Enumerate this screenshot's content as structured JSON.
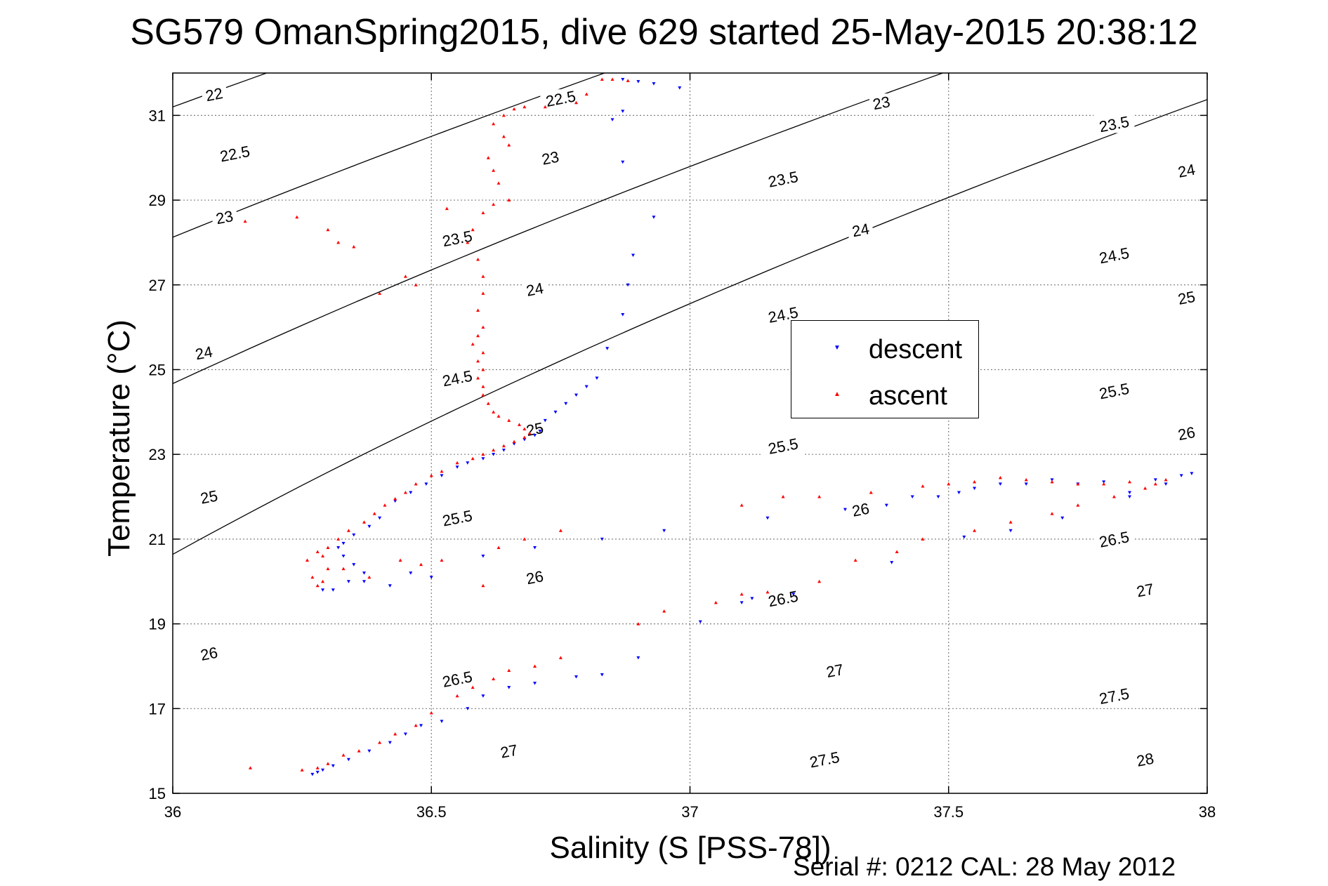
{
  "figure": {
    "title": "SG579 OmanSpring2015, dive 629 started 25-May-2015 20:38:12",
    "serial_text": "Serial #: 0212  CAL: 28 May 2012"
  },
  "chart_data": {
    "type": "scatter",
    "xlabel": "Salinity (S [PSS-78])",
    "ylabel": "Temperature (°C)",
    "xlim": [
      36,
      38
    ],
    "ylim": [
      15,
      32
    ],
    "xticks": [
      36,
      36.5,
      37,
      37.5,
      38
    ],
    "xtick_labels": [
      "36",
      "36.5",
      "37",
      "37.5",
      "38"
    ],
    "yticks": [
      15,
      17,
      19,
      21,
      23,
      25,
      27,
      29,
      31
    ],
    "ytick_labels": [
      "15",
      "17",
      "19",
      "21",
      "23",
      "25",
      "27",
      "29",
      "31"
    ],
    "grid": true,
    "legend_position": "right-center",
    "colors": {
      "descent": "#0000ff",
      "ascent": "#ff0000",
      "contour": "#000000",
      "grid": "#808080"
    },
    "density_contours": {
      "levels": [
        22,
        22.5,
        23,
        23.5,
        24,
        24.5,
        25,
        25.5,
        26,
        26.5,
        27,
        27.5,
        28
      ],
      "labels": [
        {
          "level": 22,
          "text": "22",
          "s": 36.08,
          "t": 31.5
        },
        {
          "level": 22.5,
          "text": "22.5",
          "s": 36.12,
          "t": 30.1
        },
        {
          "level": 23,
          "text": "23",
          "s": 36.1,
          "t": 28.6
        },
        {
          "level": 24,
          "text": "24",
          "s": 36.06,
          "t": 25.4
        },
        {
          "level": 25,
          "text": "25",
          "s": 36.07,
          "t": 22.0
        },
        {
          "level": 26,
          "text": "26",
          "s": 36.07,
          "t": 18.3
        },
        {
          "level": 23.5,
          "text": "23.5",
          "s": 36.55,
          "t": 28.1
        },
        {
          "level": 24.5,
          "text": "24.5",
          "s": 36.55,
          "t": 24.8
        },
        {
          "level": 25.5,
          "text": "25.5",
          "s": 36.55,
          "t": 21.5
        },
        {
          "level": 26.5,
          "text": "26.5",
          "s": 36.55,
          "t": 17.7
        },
        {
          "level": 27,
          "text": "27",
          "s": 36.65,
          "t": 16.0
        },
        {
          "level": 22.5,
          "text": "22.5",
          "s": 36.75,
          "t": 31.4
        },
        {
          "level": 23,
          "text": "23",
          "s": 36.73,
          "t": 30.0
        },
        {
          "level": 24,
          "text": "24",
          "s": 36.7,
          "t": 26.9
        },
        {
          "level": 25,
          "text": "25",
          "s": 36.7,
          "t": 23.6
        },
        {
          "level": 26,
          "text": "26",
          "s": 36.7,
          "t": 20.1
        },
        {
          "level": 23.5,
          "text": "23.5",
          "s": 37.18,
          "t": 29.5
        },
        {
          "level": 24.5,
          "text": "24.5",
          "s": 37.18,
          "t": 26.3
        },
        {
          "level": 25.5,
          "text": "25.5",
          "s": 37.18,
          "t": 23.2
        },
        {
          "level": 26.5,
          "text": "26.5",
          "s": 37.18,
          "t": 19.6
        },
        {
          "level": 27.5,
          "text": "27.5",
          "s": 37.26,
          "t": 15.8
        },
        {
          "level": 23,
          "text": "23",
          "s": 37.37,
          "t": 31.3
        },
        {
          "level": 24,
          "text": "24",
          "s": 37.33,
          "t": 28.3
        },
        {
          "level": 26,
          "text": "26",
          "s": 37.33,
          "t": 21.7
        },
        {
          "level": 27,
          "text": "27",
          "s": 37.28,
          "t": 17.9
        },
        {
          "level": 23.5,
          "text": "23.5",
          "s": 37.82,
          "t": 30.8
        },
        {
          "level": 24.5,
          "text": "24.5",
          "s": 37.82,
          "t": 27.7
        },
        {
          "level": 25.5,
          "text": "25.5",
          "s": 37.82,
          "t": 24.5
        },
        {
          "level": 26.5,
          "text": "26.5",
          "s": 37.82,
          "t": 21.0
        },
        {
          "level": 27.5,
          "text": "27.5",
          "s": 37.82,
          "t": 17.3
        },
        {
          "level": 24,
          "text": "24",
          "s": 37.96,
          "t": 29.7
        },
        {
          "level": 25,
          "text": "25",
          "s": 37.96,
          "t": 26.7
        },
        {
          "level": 26,
          "text": "26",
          "s": 37.96,
          "t": 23.5
        },
        {
          "level": 27,
          "text": "27",
          "s": 37.88,
          "t": 19.8
        },
        {
          "level": 28,
          "text": "28",
          "s": 37.88,
          "t": 15.8
        }
      ]
    },
    "series": [
      {
        "name": "descent",
        "marker": "triangle-down",
        "points": [
          [
            36.87,
            31.85
          ],
          [
            36.9,
            31.8
          ],
          [
            36.93,
            31.75
          ],
          [
            36.98,
            31.65
          ],
          [
            36.87,
            31.1
          ],
          [
            36.85,
            30.9
          ],
          [
            36.87,
            29.9
          ],
          [
            36.93,
            28.6
          ],
          [
            36.89,
            27.7
          ],
          [
            36.88,
            27.0
          ],
          [
            36.87,
            26.3
          ],
          [
            36.84,
            25.5
          ],
          [
            36.82,
            24.8
          ],
          [
            36.8,
            24.6
          ],
          [
            36.78,
            24.4
          ],
          [
            36.76,
            24.2
          ],
          [
            36.74,
            24.0
          ],
          [
            36.72,
            23.8
          ],
          [
            36.71,
            23.55
          ],
          [
            36.7,
            23.45
          ],
          [
            36.68,
            23.35
          ],
          [
            36.66,
            23.25
          ],
          [
            36.64,
            23.1
          ],
          [
            36.62,
            23.0
          ],
          [
            36.6,
            22.9
          ],
          [
            36.57,
            22.8
          ],
          [
            36.55,
            22.7
          ],
          [
            36.52,
            22.5
          ],
          [
            36.49,
            22.3
          ],
          [
            36.46,
            22.1
          ],
          [
            36.43,
            21.9
          ],
          [
            36.4,
            21.5
          ],
          [
            36.38,
            21.3
          ],
          [
            36.35,
            21.1
          ],
          [
            36.33,
            20.9
          ],
          [
            36.32,
            20.8
          ],
          [
            36.33,
            20.6
          ],
          [
            36.35,
            20.4
          ],
          [
            36.37,
            20.2
          ],
          [
            36.34,
            20.0
          ],
          [
            36.31,
            19.8
          ],
          [
            36.29,
            19.8
          ],
          [
            36.37,
            20.0
          ],
          [
            36.42,
            19.9
          ],
          [
            36.46,
            20.2
          ],
          [
            36.5,
            20.1
          ],
          [
            36.6,
            20.6
          ],
          [
            36.7,
            20.8
          ],
          [
            36.83,
            21.0
          ],
          [
            36.95,
            21.2
          ],
          [
            37.02,
            19.05
          ],
          [
            37.1,
            19.5
          ],
          [
            37.12,
            19.6
          ],
          [
            37.2,
            19.7
          ],
          [
            36.9,
            18.2
          ],
          [
            36.83,
            17.8
          ],
          [
            36.78,
            17.75
          ],
          [
            36.7,
            17.6
          ],
          [
            36.65,
            17.5
          ],
          [
            36.6,
            17.3
          ],
          [
            36.57,
            17.0
          ],
          [
            36.52,
            16.7
          ],
          [
            36.48,
            16.6
          ],
          [
            36.45,
            16.4
          ],
          [
            36.42,
            16.2
          ],
          [
            36.38,
            16.0
          ],
          [
            36.34,
            15.8
          ],
          [
            36.31,
            15.65
          ],
          [
            36.29,
            15.55
          ],
          [
            36.28,
            15.5
          ],
          [
            36.27,
            15.45
          ],
          [
            37.15,
            21.5
          ],
          [
            37.3,
            21.7
          ],
          [
            37.38,
            21.8
          ],
          [
            37.43,
            22.0
          ],
          [
            37.48,
            22.0
          ],
          [
            37.52,
            22.1
          ],
          [
            37.55,
            22.2
          ],
          [
            37.6,
            22.3
          ],
          [
            37.65,
            22.3
          ],
          [
            37.7,
            22.4
          ],
          [
            37.75,
            22.3
          ],
          [
            37.8,
            22.35
          ],
          [
            37.85,
            22.1
          ],
          [
            37.9,
            22.4
          ],
          [
            37.95,
            22.5
          ],
          [
            37.97,
            22.55
          ],
          [
            37.39,
            20.45
          ],
          [
            37.53,
            21.05
          ],
          [
            37.62,
            21.2
          ],
          [
            37.72,
            21.5
          ],
          [
            37.85,
            22.0
          ],
          [
            37.92,
            22.3
          ]
        ]
      },
      {
        "name": "ascent",
        "marker": "triangle-up",
        "points": [
          [
            36.83,
            31.85
          ],
          [
            36.85,
            31.85
          ],
          [
            36.88,
            31.82
          ],
          [
            36.8,
            31.5
          ],
          [
            36.78,
            31.3
          ],
          [
            36.72,
            31.2
          ],
          [
            36.68,
            31.2
          ],
          [
            36.66,
            31.15
          ],
          [
            36.64,
            31.0
          ],
          [
            36.62,
            30.8
          ],
          [
            36.64,
            30.5
          ],
          [
            36.65,
            30.3
          ],
          [
            36.61,
            30.0
          ],
          [
            36.62,
            29.7
          ],
          [
            36.63,
            29.4
          ],
          [
            36.65,
            29.0
          ],
          [
            36.65,
            29.0
          ],
          [
            36.62,
            28.9
          ],
          [
            36.6,
            28.7
          ],
          [
            36.58,
            28.3
          ],
          [
            36.57,
            28.0
          ],
          [
            36.59,
            27.6
          ],
          [
            36.6,
            27.2
          ],
          [
            36.6,
            26.8
          ],
          [
            36.59,
            26.4
          ],
          [
            36.6,
            26.0
          ],
          [
            36.59,
            25.8
          ],
          [
            36.58,
            25.6
          ],
          [
            36.6,
            25.4
          ],
          [
            36.59,
            25.2
          ],
          [
            36.6,
            25.0
          ],
          [
            36.59,
            24.8
          ],
          [
            36.6,
            24.6
          ],
          [
            36.6,
            24.4
          ],
          [
            36.61,
            24.2
          ],
          [
            36.62,
            24.0
          ],
          [
            36.63,
            23.9
          ],
          [
            36.65,
            23.8
          ],
          [
            36.67,
            23.7
          ],
          [
            36.68,
            23.6
          ],
          [
            36.69,
            23.5
          ],
          [
            36.68,
            23.4
          ],
          [
            36.66,
            23.3
          ],
          [
            36.64,
            23.2
          ],
          [
            36.62,
            23.1
          ],
          [
            36.6,
            23.0
          ],
          [
            36.58,
            22.9
          ],
          [
            36.55,
            22.8
          ],
          [
            36.52,
            22.6
          ],
          [
            36.5,
            22.5
          ],
          [
            36.47,
            22.3
          ],
          [
            36.45,
            22.1
          ],
          [
            36.43,
            21.95
          ],
          [
            36.41,
            21.8
          ],
          [
            36.39,
            21.6
          ],
          [
            36.37,
            21.4
          ],
          [
            36.34,
            21.2
          ],
          [
            36.32,
            21.0
          ],
          [
            36.3,
            20.8
          ],
          [
            36.29,
            20.6
          ],
          [
            36.3,
            20.3
          ],
          [
            36.29,
            20.0
          ],
          [
            36.28,
            19.9
          ],
          [
            36.27,
            20.1
          ],
          [
            36.26,
            20.5
          ],
          [
            36.28,
            20.7
          ],
          [
            36.33,
            20.3
          ],
          [
            36.38,
            20.1
          ],
          [
            36.44,
            20.5
          ],
          [
            36.48,
            20.4
          ],
          [
            36.52,
            20.5
          ],
          [
            36.14,
            28.5
          ],
          [
            36.24,
            28.6
          ],
          [
            36.3,
            28.3
          ],
          [
            36.32,
            28.0
          ],
          [
            36.4,
            26.8
          ],
          [
            36.45,
            27.2
          ],
          [
            36.47,
            27.0
          ],
          [
            36.35,
            27.9
          ],
          [
            36.53,
            28.8
          ],
          [
            36.6,
            19.9
          ],
          [
            36.63,
            20.8
          ],
          [
            36.68,
            21.0
          ],
          [
            36.75,
            21.2
          ],
          [
            36.15,
            15.6
          ],
          [
            36.25,
            15.55
          ],
          [
            36.28,
            15.6
          ],
          [
            36.3,
            15.7
          ],
          [
            36.33,
            15.9
          ],
          [
            36.36,
            16.0
          ],
          [
            36.4,
            16.2
          ],
          [
            36.43,
            16.4
          ],
          [
            36.47,
            16.6
          ],
          [
            36.5,
            16.9
          ],
          [
            36.55,
            17.3
          ],
          [
            36.58,
            17.5
          ],
          [
            36.62,
            17.7
          ],
          [
            36.65,
            17.9
          ],
          [
            36.7,
            18.0
          ],
          [
            36.75,
            18.2
          ],
          [
            36.9,
            19.0
          ],
          [
            36.95,
            19.3
          ],
          [
            37.05,
            19.5
          ],
          [
            37.1,
            19.7
          ],
          [
            37.15,
            19.75
          ],
          [
            37.25,
            20.0
          ],
          [
            37.32,
            20.5
          ],
          [
            37.4,
            20.7
          ],
          [
            37.45,
            21.0
          ],
          [
            37.55,
            21.2
          ],
          [
            37.62,
            21.4
          ],
          [
            37.7,
            21.6
          ],
          [
            37.75,
            21.8
          ],
          [
            37.82,
            22.0
          ],
          [
            37.88,
            22.2
          ],
          [
            37.92,
            22.4
          ],
          [
            37.1,
            21.8
          ],
          [
            37.18,
            22.0
          ],
          [
            37.25,
            22.0
          ],
          [
            37.35,
            22.1
          ],
          [
            37.45,
            22.25
          ],
          [
            37.5,
            22.3
          ],
          [
            37.55,
            22.35
          ],
          [
            37.6,
            22.45
          ],
          [
            37.65,
            22.4
          ],
          [
            37.7,
            22.35
          ],
          [
            37.75,
            22.3
          ],
          [
            37.8,
            22.3
          ],
          [
            37.85,
            22.35
          ],
          [
            37.9,
            22.3
          ]
        ]
      }
    ]
  }
}
